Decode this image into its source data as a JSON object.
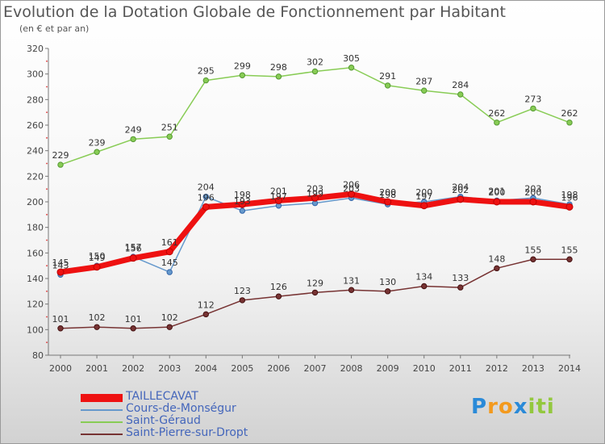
{
  "chart_data": {
    "type": "line",
    "title": "Evolution de la Dotation Globale de Fonctionnement par Habitant",
    "subtitle": "(en € et par an)",
    "categories": [
      "2000",
      "2001",
      "2002",
      "2003",
      "2004",
      "2005",
      "2006",
      "2007",
      "2008",
      "2009",
      "2010",
      "2011",
      "2012",
      "2013",
      "2014"
    ],
    "ylim": [
      80,
      320
    ],
    "yticks": [
      80,
      100,
      120,
      140,
      160,
      180,
      200,
      220,
      240,
      260,
      280,
      300,
      320
    ],
    "grid": false,
    "legend_position": "bottom-left",
    "series": [
      {
        "name": "TAILLECAVAT",
        "color": "#ee1111",
        "values": [
          145,
          149,
          156,
          161,
          196,
          198,
          201,
          203,
          206,
          200,
          197,
          202,
          200,
          200,
          196
        ]
      },
      {
        "name": "Cours-de-Monségur",
        "color": "#6699cc",
        "values": [
          143,
          150,
          157,
          145,
          204,
          193,
          197,
          199,
          203,
          198,
          200,
          204,
          201,
          203,
          198
        ]
      },
      {
        "name": "Saint-Géraud",
        "color": "#88cc55",
        "values": [
          229,
          239,
          249,
          251,
          295,
          299,
          298,
          302,
          305,
          291,
          287,
          284,
          262,
          273,
          262
        ]
      },
      {
        "name": "Saint-Pierre-sur-Dropt",
        "color": "#773333",
        "values": [
          101,
          102,
          101,
          102,
          112,
          123,
          126,
          129,
          131,
          130,
          134,
          133,
          148,
          155,
          155
        ]
      }
    ]
  },
  "logo": {
    "letters": [
      "P",
      "r",
      "o",
      "x",
      "i",
      "t",
      "i"
    ],
    "colors": [
      "#2a8ad8",
      "#f39a1e",
      "#f39a1e",
      "#2a8ad8",
      "#93c83e",
      "#93c83e",
      "#93c83e"
    ]
  }
}
